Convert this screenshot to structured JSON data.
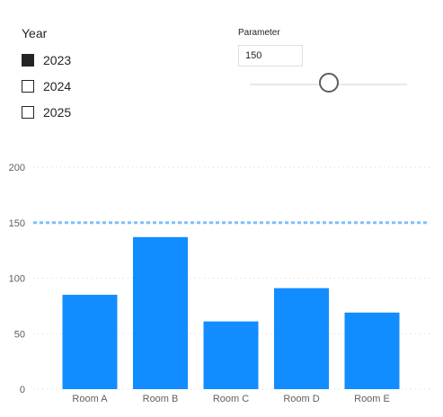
{
  "slicer": {
    "title": "Year",
    "items": [
      {
        "label": "2023",
        "checked": true
      },
      {
        "label": "2024",
        "checked": false
      },
      {
        "label": "2025",
        "checked": false
      }
    ]
  },
  "parameter": {
    "title": "Parameter",
    "value": "150",
    "slider_fraction": 0.5
  },
  "colors": {
    "bar": "#118dff",
    "reference_line": "#7fbfff",
    "gridline": "#d9d9d9",
    "text": "#252423"
  },
  "chart_data": {
    "type": "bar",
    "categories": [
      "Room A",
      "Room B",
      "Room C",
      "Room D",
      "Room E"
    ],
    "values": [
      85,
      137,
      61,
      91,
      69
    ],
    "ylim": [
      0,
      200
    ],
    "yticks": [
      0,
      50,
      100,
      150,
      200
    ],
    "reference_line": 150,
    "grid": true,
    "title": "",
    "xlabel": "",
    "ylabel": ""
  }
}
